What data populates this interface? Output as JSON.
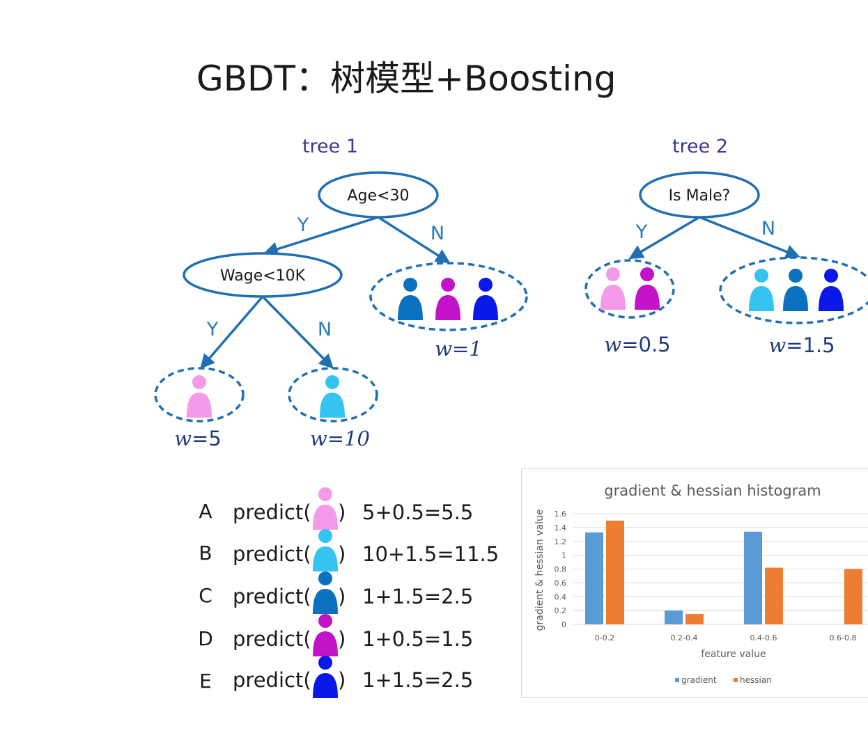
{
  "title": "GBDT：树模型+Boosting",
  "colors": {
    "tree_line": "#1f6fb2",
    "person_pink": "#f59ae8",
    "person_cyan": "#35c3f2",
    "person_blue": "#0a70c0",
    "person_magenta": "#c213c8",
    "person_navy": "#0a18e8"
  },
  "tree1": {
    "label": "tree 1",
    "root": "Age<30",
    "child": "Wage<10K",
    "edge_yes": "Y",
    "edge_no": "N",
    "w_no": "1",
    "w_yes_yes": "5",
    "w_yes_no": "10"
  },
  "tree2": {
    "label": "tree 2",
    "root": "Is Male?",
    "edge_yes": "Y",
    "edge_no": "N",
    "w_yes": "0.5",
    "w_no": "1.5"
  },
  "weight_symbol": "w",
  "predictions": [
    {
      "letter": "A",
      "fn": "predict(",
      "close": ")",
      "result": "5+0.5=5.5",
      "person": "person_pink"
    },
    {
      "letter": "B",
      "fn": "predict(",
      "close": ")",
      "result": "10+1.5=11.5",
      "person": "person_cyan"
    },
    {
      "letter": "C",
      "fn": "predict(",
      "close": ")",
      "result": "1+1.5=2.5",
      "person": "person_blue"
    },
    {
      "letter": "D",
      "fn": "predict(",
      "close": ")",
      "result": "1+0.5=1.5",
      "person": "person_magenta"
    },
    {
      "letter": "E",
      "fn": "predict(",
      "close": ")",
      "result": "1+1.5=2.5",
      "person": "person_navy"
    }
  ],
  "chart_data": {
    "type": "bar",
    "title": "gradient & hessian histogram",
    "xlabel": "feature value",
    "ylabel": "gradient & hessian value",
    "categories": [
      "0-0.2",
      "0.2-0.4",
      "0.4-0.6",
      "0.6-0.8"
    ],
    "series": [
      {
        "name": "gradient",
        "color": "#5b9bd5",
        "values": [
          1.33,
          0.2,
          1.34,
          0
        ]
      },
      {
        "name": "hessian",
        "color": "#ed7d31",
        "values": [
          1.5,
          0.15,
          0.82,
          0.8
        ]
      }
    ],
    "ylim": [
      0,
      1.6
    ],
    "yticks": [
      "0",
      "0.2",
      "0.4",
      "0.6",
      "0.8",
      "1",
      "1.2",
      "1.4",
      "1.6"
    ],
    "grid": true,
    "legend": "bottom"
  }
}
